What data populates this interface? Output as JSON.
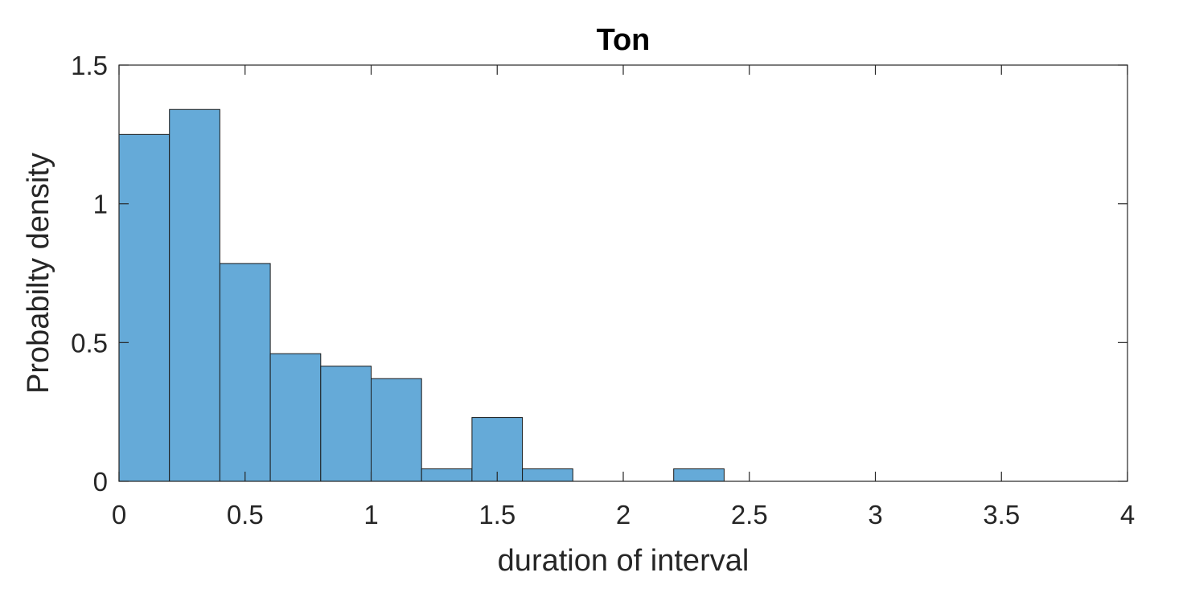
{
  "chart_data": {
    "type": "bar",
    "subtype": "histogram",
    "title": "Ton",
    "xlabel": "duration of interval",
    "ylabel": "Probabilty density",
    "xlim": [
      0,
      4
    ],
    "ylim": [
      0,
      1.5
    ],
    "xticks": [
      0,
      0.5,
      1,
      1.5,
      2,
      2.5,
      3,
      3.5,
      4
    ],
    "xtick_labels": [
      "0",
      "0.5",
      "1",
      "1.5",
      "2",
      "2.5",
      "3",
      "3.5",
      "4"
    ],
    "yticks": [
      0,
      0.5,
      1,
      1.5
    ],
    "ytick_labels": [
      "0",
      "0.5",
      "1",
      "1.5"
    ],
    "bin_width": 0.2,
    "bin_edges": [
      0,
      0.2,
      0.4,
      0.6,
      0.8,
      1.0,
      1.2,
      1.4,
      1.6,
      1.8,
      2.0,
      2.2,
      2.4,
      2.6
    ],
    "values": [
      1.25,
      1.34,
      0.785,
      0.46,
      0.415,
      0.37,
      0.045,
      0.23,
      0.045,
      0,
      0,
      0.045,
      0
    ],
    "grid": false,
    "bar_color": "#65aad8",
    "edge_color": "#1a1a1a"
  }
}
